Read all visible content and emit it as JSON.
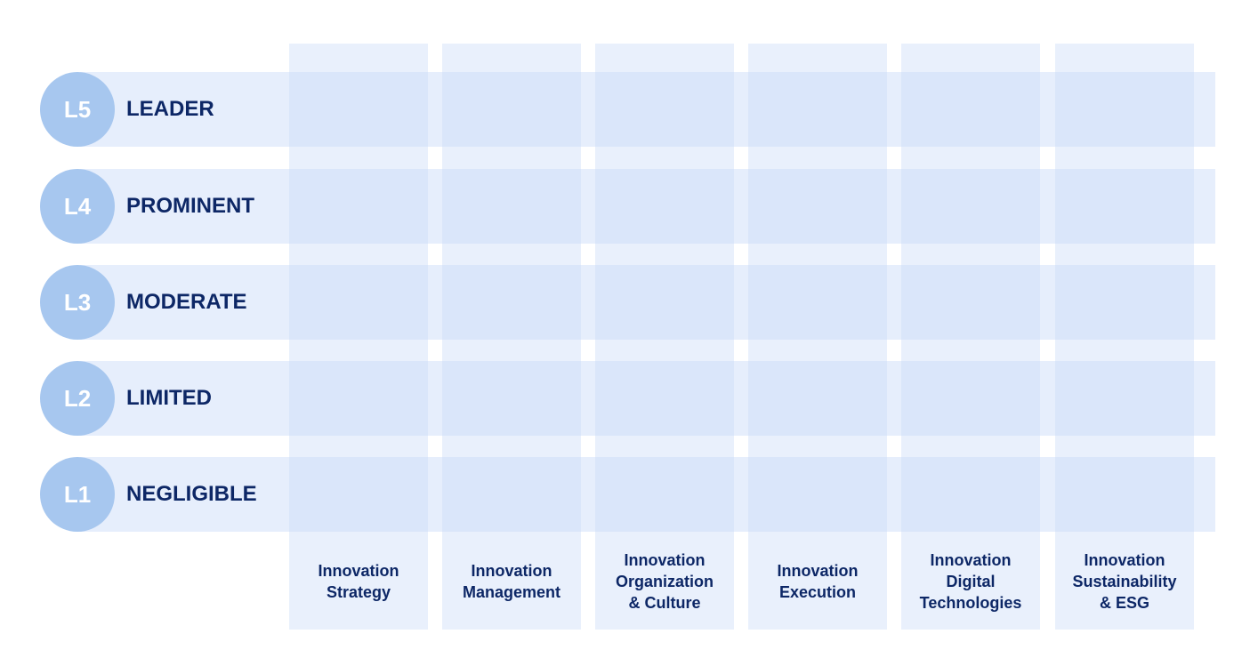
{
  "levels": [
    {
      "code": "L5",
      "label": "LEADER"
    },
    {
      "code": "L4",
      "label": "PROMINENT"
    },
    {
      "code": "L3",
      "label": "MODERATE"
    },
    {
      "code": "L2",
      "label": "LIMITED"
    },
    {
      "code": "L1",
      "label": "NEGLIGIBLE"
    }
  ],
  "dimensions": [
    "Innovation\nStrategy",
    "Innovation\nManagement",
    "Innovation\nOrganization\n& Culture",
    "Innovation\nExecution",
    "Innovation\nDigital\nTechnologies",
    "Innovation\nSustainability\n& ESG"
  ],
  "colors": {
    "circle": "#a7c7ef",
    "text": "#0d2766",
    "band": "#e6eefc",
    "intersection": "#d3e2fb"
  }
}
